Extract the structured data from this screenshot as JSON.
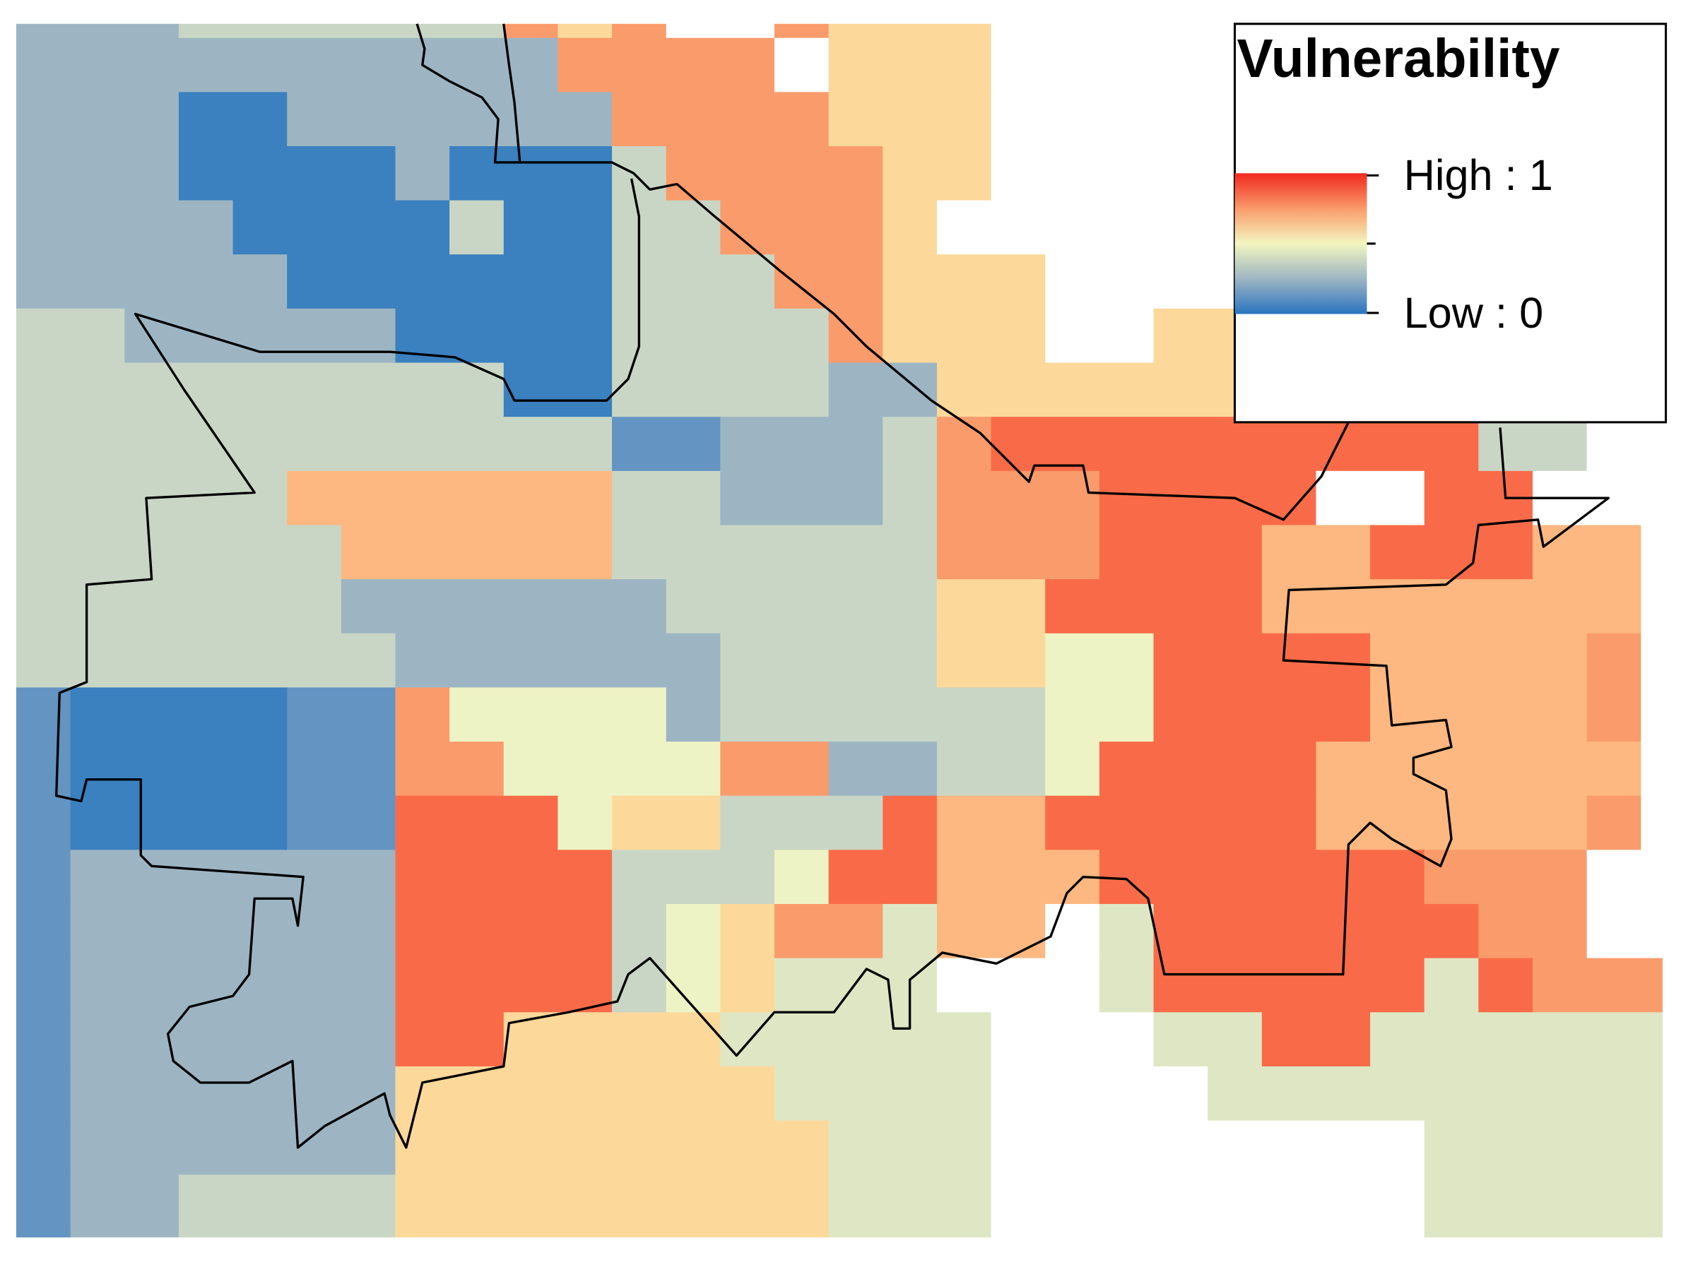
{
  "legend": {
    "title": "Vulnerability",
    "high": "High : 1",
    "low": "Low : 0"
  }
}
